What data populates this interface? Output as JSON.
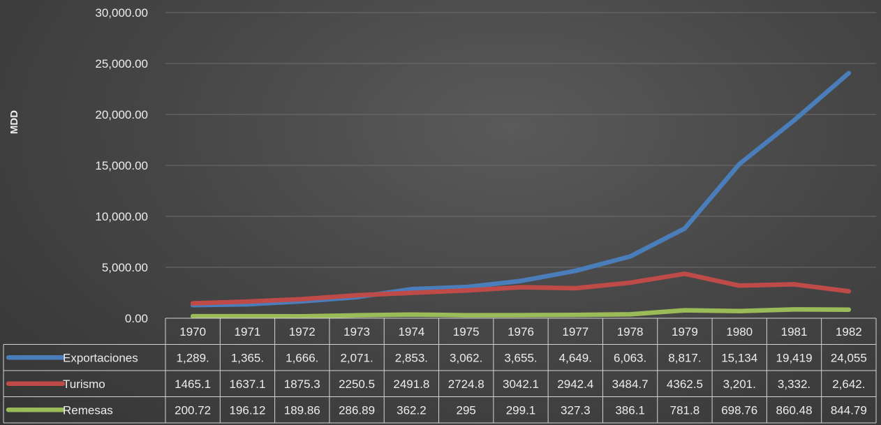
{
  "chart_data": {
    "type": "line",
    "title": "",
    "xlabel": "",
    "ylabel": "MDD",
    "ylim": [
      0,
      30000
    ],
    "yticks": [
      "0.00",
      "5,000.00",
      "10,000.00",
      "15,000.00",
      "20,000.00",
      "25,000.00",
      "30,000.00"
    ],
    "grid": true,
    "legend": "data-table",
    "categories": [
      "1970",
      "1971",
      "1972",
      "1973",
      "1974",
      "1975",
      "1976",
      "1977",
      "1978",
      "1979",
      "1980",
      "1981",
      "1982"
    ],
    "series": [
      {
        "name": "Exportaciones",
        "color": "#4a7ebb",
        "values": [
          1289,
          1365,
          1666,
          2071,
          2853,
          3062,
          3655,
          4649,
          6063,
          8817,
          15134,
          19419,
          24055
        ],
        "labels": [
          "1,289.",
          "1,365.",
          "1,666.",
          "2,071.",
          "2,853.",
          "3,062.",
          "3,655.",
          "4,649.",
          "6,063.",
          "8,817.",
          "15,134",
          "19,419",
          "24,055"
        ]
      },
      {
        "name": "Turismo",
        "color": "#be4b48",
        "values": [
          1465.1,
          1637.1,
          1875.3,
          2250.5,
          2491.8,
          2724.8,
          3042.1,
          2942.4,
          3484.7,
          4362.5,
          3201,
          3332,
          2642
        ],
        "labels": [
          "1465.1",
          "1637.1",
          "1875.3",
          "2250.5",
          "2491.8",
          "2724.8",
          "3042.1",
          "2942.4",
          "3484.7",
          "4362.5",
          "3,201.",
          "3,332.",
          "2,642."
        ]
      },
      {
        "name": "Remesas",
        "color": "#9bbb59",
        "values": [
          200.72,
          196.12,
          189.86,
          286.89,
          362.2,
          295,
          299.1,
          327.3,
          386.1,
          781.8,
          698.76,
          860.48,
          844.79
        ],
        "labels": [
          "200.72",
          "196.12",
          "189.86",
          "286.89",
          "362.2",
          "295",
          "299.1",
          "327.3",
          "386.1",
          "781.8",
          "698.76",
          "860.48",
          "844.79"
        ]
      }
    ]
  }
}
